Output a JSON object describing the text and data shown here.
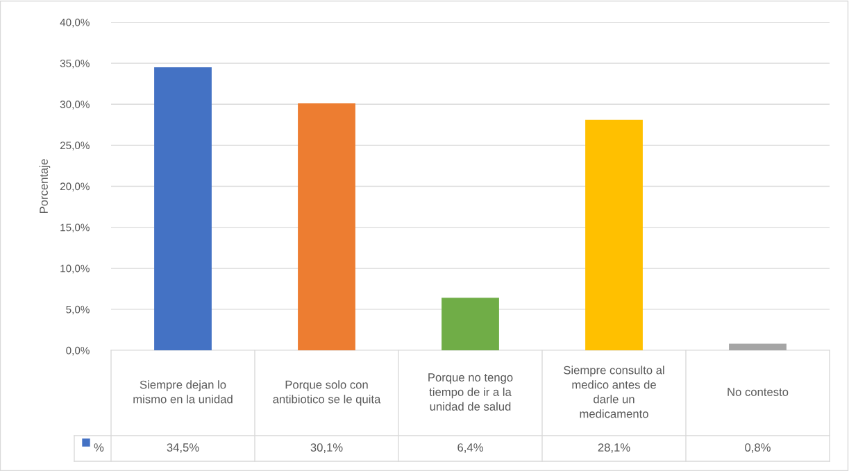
{
  "chart_data": {
    "type": "bar",
    "ylabel": "Porcentaje",
    "categories": [
      "Siempre dejan lo mismo en la unidad",
      "Porque solo con antibiotico se le quita",
      "Porque no tengo tiempo de ir a la unidad de salud",
      "Siempre consulto al medico antes de darle un medicamento",
      "No contesto"
    ],
    "series": [
      {
        "name": "%",
        "values": [
          34.5,
          30.1,
          6.4,
          28.1,
          0.8
        ],
        "value_labels": [
          "34,5%",
          "30,1%",
          "6,4%",
          "28,1%",
          "0,8%"
        ]
      }
    ],
    "colors": [
      "#4472c4",
      "#ed7d31",
      "#70ad47",
      "#ffc000",
      "#a5a5a5"
    ],
    "ylim": [
      0,
      40
    ],
    "yticks": [
      {
        "value": 0,
        "label": "0,0%"
      },
      {
        "value": 5,
        "label": "5,0%"
      },
      {
        "value": 10,
        "label": "10,0%"
      },
      {
        "value": 15,
        "label": "15,0%"
      },
      {
        "value": 20,
        "label": "20,0%"
      },
      {
        "value": 25,
        "label": "25,0%"
      },
      {
        "value": 30,
        "label": "30,0%"
      },
      {
        "value": 35,
        "label": "35,0%"
      },
      {
        "value": 40,
        "label": "40,0%"
      }
    ],
    "grid": "y",
    "legend": "bottom"
  }
}
